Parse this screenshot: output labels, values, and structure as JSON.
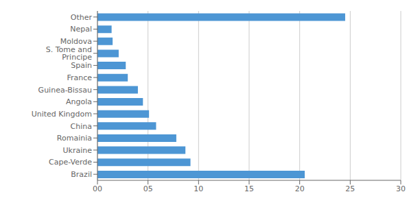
{
  "chart_data": {
    "type": "bar",
    "orientation": "horizontal",
    "categories": [
      "Brazil",
      "Cape-Verde",
      "Ukraine",
      "Romainia",
      "China",
      "United Kingdom",
      "Angola",
      "Guinea-Bissau",
      "France",
      "Spain",
      "S. Tome and Principe",
      "Moldova",
      "Nepal",
      "Other"
    ],
    "values": [
      20.5,
      9.2,
      8.7,
      7.8,
      5.8,
      5.1,
      4.5,
      4.0,
      3.0,
      2.8,
      2.1,
      1.5,
      1.4,
      24.5
    ],
    "color": "#4d96d4",
    "xlim": [
      0,
      30
    ],
    "xticks": [
      {
        "value": 0,
        "label": "00"
      },
      {
        "value": 5,
        "label": "05"
      },
      {
        "value": 10,
        "label": "10"
      },
      {
        "value": 15,
        "label": "15"
      },
      {
        "value": 20,
        "label": "20"
      },
      {
        "value": 25,
        "label": "25"
      },
      {
        "value": 30,
        "label": "30"
      }
    ],
    "grid": true
  }
}
